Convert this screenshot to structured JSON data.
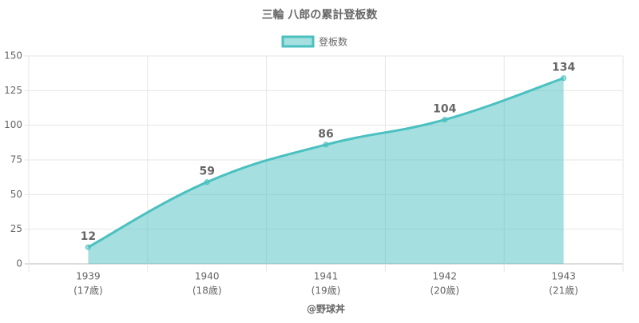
{
  "chart_data": {
    "type": "area",
    "title": "三輪 八郎の累計登板数",
    "categories": [
      [
        "1939",
        "(17歳)"
      ],
      [
        "1940",
        "(18歳)"
      ],
      [
        "1941",
        "(19歳)"
      ],
      [
        "1942",
        "(20歳)"
      ],
      [
        "1943",
        "(21歳)"
      ]
    ],
    "series": [
      {
        "name": "登板数",
        "color": "#4bc0c0",
        "values": [
          12,
          59,
          86,
          104,
          134
        ]
      }
    ],
    "xlabel": "@野球丼",
    "ylim": [
      0,
      150
    ],
    "yticks": [
      0,
      25,
      50,
      75,
      100,
      125,
      150
    ],
    "grid": true,
    "legend": "top"
  }
}
